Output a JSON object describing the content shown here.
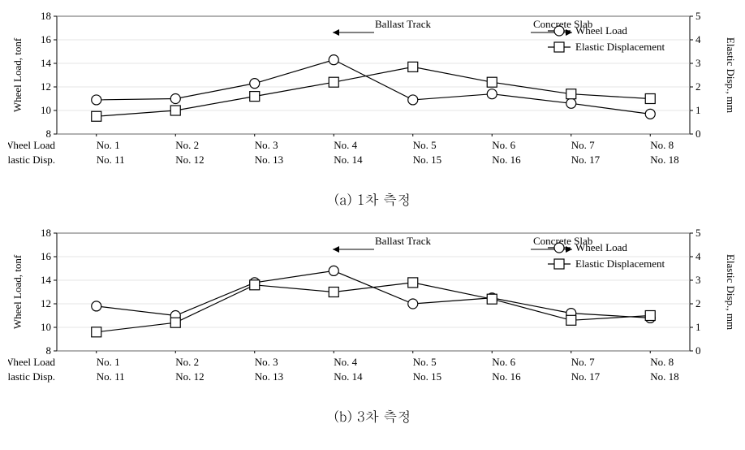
{
  "common": {
    "background_color": "#ffffff",
    "axis_color": "#000000",
    "grid_color": "#cccccc",
    "text_color": "#000000",
    "line_color": "#000000",
    "marker_size": 6,
    "font_family": "Times New Roman",
    "y1_label": "Wheel Load, tonf",
    "y2_label": "Elastic Disp., mm",
    "y1_lim": [
      8,
      18
    ],
    "y2_lim": [
      0,
      5
    ],
    "y1_ticks": [
      8,
      10,
      12,
      14,
      16,
      18
    ],
    "y2_ticks": [
      0,
      1,
      2,
      3,
      4,
      5
    ],
    "x_row1_prefix": "Wheel Load",
    "x_row2_prefix": "Elastic Disp.",
    "x_row1_labels": [
      "No. 1",
      "No. 2",
      "No. 3",
      "No. 4",
      "No. 5",
      "No. 6",
      "No. 7",
      "No. 8"
    ],
    "x_row2_labels": [
      "No. 11",
      "No. 12",
      "No. 13",
      "No. 14",
      "No. 15",
      "No. 16",
      "No. 17",
      "No. 18"
    ],
    "annot1": "Ballast Track",
    "annot2": "Concrete Slab",
    "legend1": "Wheel Load",
    "legend2": "Elastic Displacement",
    "label_fontsize": 13,
    "tick_fontsize": 13,
    "annot_fontsize": 13,
    "legend_fontsize": 13
  },
  "chart_a": {
    "caption": "(a) 1차 측정",
    "wheel_load": [
      10.9,
      11.0,
      12.3,
      14.3,
      10.9,
      11.4,
      10.6,
      9.7
    ],
    "elastic_disp": [
      0.75,
      1.0,
      1.6,
      2.2,
      2.85,
      2.2,
      1.7,
      1.5
    ],
    "annot1_x_center": 3.5,
    "annot2_x_center": 5.5
  },
  "chart_b": {
    "caption": "(b) 3차 측정",
    "wheel_load": [
      11.8,
      11.0,
      13.8,
      14.8,
      12.0,
      12.5,
      11.2,
      10.8
    ],
    "elastic_disp": [
      0.8,
      1.2,
      2.8,
      2.5,
      2.9,
      2.2,
      1.3,
      1.5
    ],
    "annot1_x_center": 3.5,
    "annot2_x_center": 5.5
  }
}
